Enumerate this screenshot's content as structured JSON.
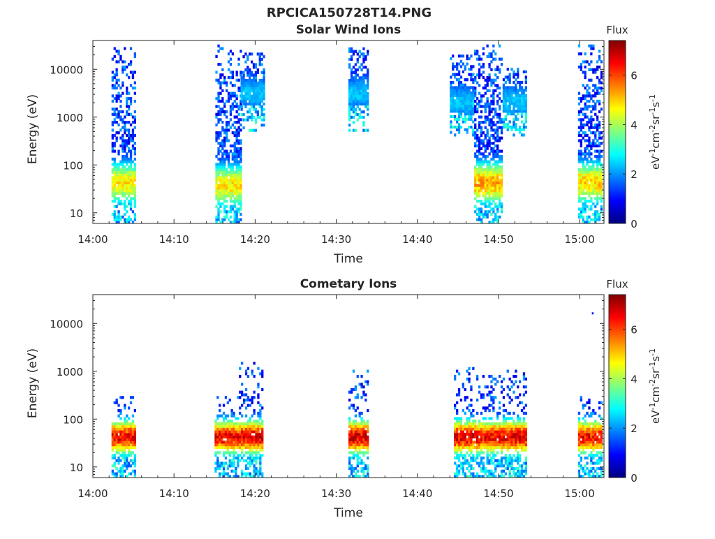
{
  "figure": {
    "title": "RPCICA150728T14.PNG"
  },
  "chart_data": [
    {
      "type": "heatmap",
      "title": "Solar Wind Ions",
      "xlabel": "Time",
      "ylabel": "Energy (eV)",
      "x_ticks": [
        "14:00",
        "14:10",
        "14:20",
        "14:30",
        "14:40",
        "14:50",
        "15:00"
      ],
      "x_tick_minutes": [
        0,
        10,
        20,
        30,
        40,
        50,
        60
      ],
      "xlim_minutes": [
        0,
        63
      ],
      "y_scale": "log",
      "y_ticks": [
        "10",
        "100",
        "1000",
        "10000"
      ],
      "y_tick_values": [
        10,
        100,
        1000,
        10000
      ],
      "ylim": [
        6,
        40000
      ],
      "colorbar": {
        "label": "Flux",
        "unit_label": "eV-1cm-2sr-1s-1",
        "ticks": [
          "0",
          "2",
          "4",
          "6"
        ],
        "tick_values": [
          0,
          2,
          4,
          6
        ],
        "range": [
          0,
          7.4
        ],
        "colormap": "jet"
      },
      "grid": false,
      "bursts": [
        {
          "t_start": 2.3,
          "t_end": 5.2,
          "e_min": 6,
          "e_max": 30000,
          "peak_energy": 40,
          "peak_flux": 5.0
        },
        {
          "t_start": 15.1,
          "t_end": 18.2,
          "e_min": 6,
          "e_max": 30000,
          "peak_energy": 35,
          "peak_flux": 5.0
        },
        {
          "t_start": 18.2,
          "t_end": 21.0,
          "e_min": 500,
          "e_max": 20000,
          "peak_energy": 3000,
          "peak_flux": 2.5
        },
        {
          "t_start": 31.5,
          "t_end": 34.0,
          "e_min": 500,
          "e_max": 30000,
          "peak_energy": 3000,
          "peak_flux": 2.5
        },
        {
          "t_start": 44.0,
          "t_end": 47.0,
          "e_min": 400,
          "e_max": 20000,
          "peak_energy": 2000,
          "peak_flux": 2.5
        },
        {
          "t_start": 47.0,
          "t_end": 50.5,
          "e_min": 6,
          "e_max": 30000,
          "peak_energy": 40,
          "peak_flux": 5.5
        },
        {
          "t_start": 50.5,
          "t_end": 53.5,
          "e_min": 400,
          "e_max": 10000,
          "peak_energy": 2000,
          "peak_flux": 2.5
        },
        {
          "t_start": 59.8,
          "t_end": 62.8,
          "e_min": 6,
          "e_max": 30000,
          "peak_energy": 40,
          "peak_flux": 5.2
        }
      ]
    },
    {
      "type": "heatmap",
      "title": "Cometary Ions",
      "xlabel": "Time",
      "ylabel": "Energy (eV)",
      "x_ticks": [
        "14:00",
        "14:10",
        "14:20",
        "14:30",
        "14:40",
        "14:50",
        "15:00"
      ],
      "x_tick_minutes": [
        0,
        10,
        20,
        30,
        40,
        50,
        60
      ],
      "xlim_minutes": [
        0,
        63
      ],
      "y_scale": "log",
      "y_ticks": [
        "10",
        "100",
        "1000",
        "10000"
      ],
      "y_tick_values": [
        10,
        100,
        1000,
        10000
      ],
      "ylim": [
        6,
        40000
      ],
      "colorbar": {
        "label": "Flux",
        "unit_label": "eV-1cm-2sr-1s-1",
        "ticks": [
          "0",
          "2",
          "4",
          "6"
        ],
        "tick_values": [
          0,
          2,
          4,
          6
        ],
        "range": [
          0,
          7.4
        ],
        "colormap": "jet"
      },
      "grid": false,
      "bursts": [
        {
          "t_start": 2.3,
          "t_end": 5.2,
          "e_min": 6,
          "e_max": 300,
          "peak_energy": 40,
          "peak_flux": 6.8
        },
        {
          "t_start": 15.0,
          "t_end": 18.0,
          "e_min": 6,
          "e_max": 300,
          "peak_energy": 40,
          "peak_flux": 6.8
        },
        {
          "t_start": 18.0,
          "t_end": 21.0,
          "e_min": 6,
          "e_max": 1500,
          "peak_energy": 40,
          "peak_flux": 7.0
        },
        {
          "t_start": 31.5,
          "t_end": 34.0,
          "e_min": 6,
          "e_max": 1000,
          "peak_energy": 40,
          "peak_flux": 7.0
        },
        {
          "t_start": 44.5,
          "t_end": 47.5,
          "e_min": 6,
          "e_max": 1200,
          "peak_energy": 40,
          "peak_flux": 7.0
        },
        {
          "t_start": 47.5,
          "t_end": 50.5,
          "e_min": 6,
          "e_max": 800,
          "peak_energy": 40,
          "peak_flux": 6.8
        },
        {
          "t_start": 50.5,
          "t_end": 53.5,
          "e_min": 6,
          "e_max": 1100,
          "peak_energy": 40,
          "peak_flux": 7.0
        },
        {
          "t_start": 59.8,
          "t_end": 62.8,
          "e_min": 6,
          "e_max": 300,
          "peak_energy": 40,
          "peak_flux": 6.8
        }
      ],
      "outliers": [
        {
          "t": 61.5,
          "energy": 16000,
          "flux": 1.0
        }
      ]
    }
  ]
}
